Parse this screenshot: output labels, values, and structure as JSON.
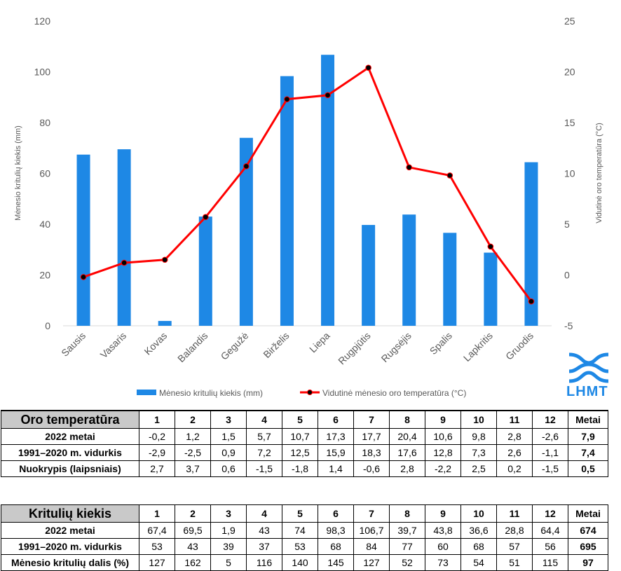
{
  "chart_data": {
    "type": "bar+line",
    "categories": [
      "Sausis",
      "Vasaris",
      "Kovas",
      "Balandis",
      "Gegužė",
      "Birželis",
      "Liepa",
      "Rugpjūtis",
      "Rugsėjis",
      "Spalis",
      "Lapkritis",
      "Gruodis"
    ],
    "series": [
      {
        "name": "Mėnesio kritulių kiekis (mm)",
        "type": "bar",
        "axis": "left",
        "color": "#1e88e5",
        "values": [
          67.4,
          69.5,
          1.9,
          43,
          74,
          98.3,
          106.7,
          39.7,
          43.8,
          36.6,
          28.8,
          64.4
        ]
      },
      {
        "name": "Vidutinė mėnesio oro temperatūra (°C)",
        "type": "line",
        "axis": "right",
        "color": "#ff0000",
        "values": [
          -0.2,
          1.2,
          1.5,
          5.7,
          10.7,
          17.3,
          17.7,
          20.4,
          10.6,
          9.8,
          2.8,
          -2.6
        ]
      }
    ],
    "y_left": {
      "label": "Mėnesio kritulių kiekis (mm)",
      "min": 0,
      "max": 120,
      "ticks": [
        "0",
        "20",
        "40",
        "60",
        "80",
        "100",
        "120"
      ]
    },
    "y_right": {
      "label": "Vidutinė oro temperatūra (°C)",
      "min": -5,
      "max": 25,
      "ticks": [
        "-5",
        "0",
        "5",
        "10",
        "15",
        "20",
        "25"
      ]
    },
    "grid": false,
    "legend_position": "bottom"
  },
  "logo": {
    "text": "LHMT",
    "color": "#1e88e5"
  },
  "temp_table": {
    "title": "Oro temperatūra",
    "columns": [
      "1",
      "2",
      "3",
      "4",
      "5",
      "6",
      "7",
      "8",
      "9",
      "10",
      "11",
      "12",
      "Metai"
    ],
    "rows": [
      {
        "label": "2022 metai",
        "values": [
          "-0,2",
          "1,2",
          "1,5",
          "5,7",
          "10,7",
          "17,3",
          "17,7",
          "20,4",
          "10,6",
          "9,8",
          "2,8",
          "-2,6"
        ],
        "total": "7,9"
      },
      {
        "label": "1991–2020 m. vidurkis",
        "values": [
          "-2,9",
          "-2,5",
          "0,9",
          "7,2",
          "12,5",
          "15,9",
          "18,3",
          "17,6",
          "12,8",
          "7,3",
          "2,6",
          "-1,1"
        ],
        "total": "7,4"
      },
      {
        "label": "Nuokrypis (laipsniais)",
        "values": [
          "2,7",
          "3,7",
          "0,6",
          "-1,5",
          "-1,8",
          "1,4",
          "-0,6",
          "2,8",
          "-2,2",
          "2,5",
          "0,2",
          "-1,5"
        ],
        "total": "0,5"
      }
    ]
  },
  "rain_table": {
    "title": "Kritulių kiekis",
    "columns": [
      "1",
      "2",
      "3",
      "4",
      "5",
      "6",
      "7",
      "8",
      "9",
      "10",
      "11",
      "12",
      "Metai"
    ],
    "rows": [
      {
        "label": "2022 metai",
        "values": [
          "67,4",
          "69,5",
          "1,9",
          "43",
          "74",
          "98,3",
          "106,7",
          "39,7",
          "43,8",
          "36,6",
          "28,8",
          "64,4"
        ],
        "total": "674"
      },
      {
        "label": "1991–2020 m. vidurkis",
        "values": [
          "53",
          "43",
          "39",
          "37",
          "53",
          "68",
          "84",
          "77",
          "60",
          "68",
          "57",
          "56"
        ],
        "total": "695"
      },
      {
        "label": "Mėnesio kritulių dalis (%)",
        "values": [
          "127",
          "162",
          "5",
          "116",
          "140",
          "145",
          "127",
          "52",
          "73",
          "54",
          "51",
          "115"
        ],
        "total": "97"
      }
    ]
  }
}
